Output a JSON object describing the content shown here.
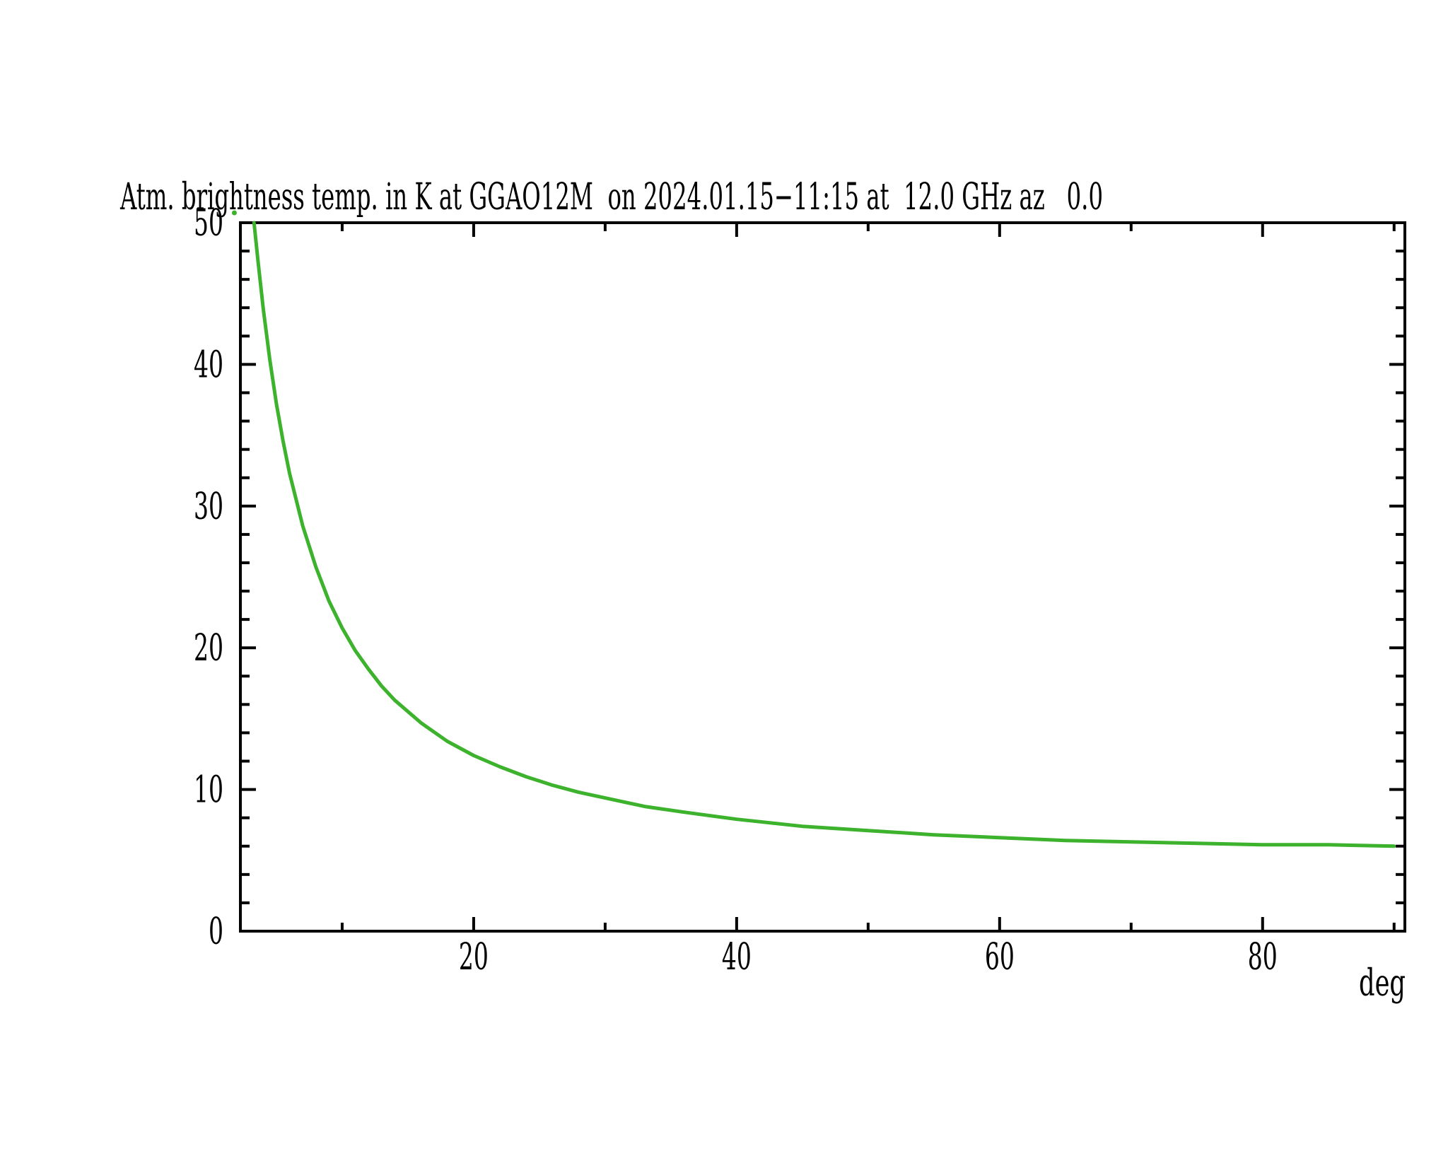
{
  "page": {
    "background": "#ffffff"
  },
  "chart_data": {
    "type": "line",
    "title": "Atm. brightness temp. in K at GGAO12M  on 2024.01.15−11:15 at  12.0 GHz az   0.0",
    "xlabel": "deg",
    "ylabel": "",
    "xlim": [
      2.26,
      90.82
    ],
    "ylim": [
      0,
      50
    ],
    "x_major_ticks": [
      20,
      40,
      60,
      80
    ],
    "x_minor_ticks": [
      10,
      30,
      50,
      70,
      90
    ],
    "y_major_ticks": [
      0,
      10,
      20,
      30,
      40,
      50
    ],
    "y_minor_step": 2,
    "grid": false,
    "legend": "none",
    "line_color": "#3cb22d",
    "axis_color": "#000000",
    "series": [
      {
        "name": "atm-brightness-temp-K-vs-elevation-deg",
        "x": [
          3.3,
          3.6,
          4.0,
          4.5,
          5.0,
          5.5,
          6.0,
          7.0,
          8.0,
          9.0,
          10,
          11,
          12,
          13,
          14,
          16,
          18,
          20,
          22,
          24,
          26,
          28,
          30,
          33,
          36,
          40,
          45,
          50,
          55,
          60,
          65,
          70,
          75,
          80,
          85,
          90
        ],
        "y": [
          50.0,
          47.3,
          43.9,
          40.3,
          37.2,
          34.6,
          32.3,
          28.6,
          25.7,
          23.3,
          21.4,
          19.8,
          18.5,
          17.3,
          16.3,
          14.7,
          13.4,
          12.4,
          11.6,
          10.9,
          10.3,
          9.8,
          9.4,
          8.8,
          8.4,
          7.9,
          7.4,
          7.1,
          6.8,
          6.6,
          6.4,
          6.3,
          6.2,
          6.1,
          6.1,
          6.0
        ]
      }
    ],
    "stray_point": {
      "x": 1.8,
      "y": 50.7
    }
  }
}
